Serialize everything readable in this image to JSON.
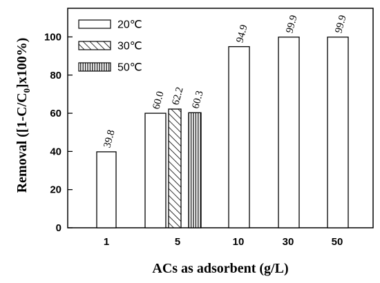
{
  "chart_data": {
    "type": "bar",
    "xlabel": "ACs as adsorbent (g/L)",
    "ylabel_parts": [
      "Removal ([1-C/C",
      "0",
      "]x100%)"
    ],
    "ylim": [
      0,
      115
    ],
    "yticks": [
      0,
      20,
      40,
      60,
      80,
      100
    ],
    "grid": false,
    "legend_position": "top-left",
    "categories": [
      "1",
      "5",
      "10",
      "30",
      "50"
    ],
    "series": [
      {
        "name": "20℃",
        "pattern": "empty",
        "values": [
          39.8,
          60.0,
          94.9,
          99.9,
          99.9
        ]
      },
      {
        "name": "30℃",
        "pattern": "diagonal",
        "values": [
          null,
          62.2,
          null,
          null,
          null
        ]
      },
      {
        "name": "50℃",
        "pattern": "vertical",
        "values": [
          null,
          60.3,
          null,
          null,
          null
        ]
      }
    ],
    "data_labels": [
      {
        "series": 0,
        "category": 0,
        "text": "39.8"
      },
      {
        "series": 0,
        "category": 1,
        "text": "60.0"
      },
      {
        "series": 1,
        "category": 1,
        "text": "62.2"
      },
      {
        "series": 2,
        "category": 1,
        "text": "60.3"
      },
      {
        "series": 0,
        "category": 2,
        "text": "94.9"
      },
      {
        "series": 0,
        "category": 3,
        "text": "99.9"
      },
      {
        "series": 0,
        "category": 4,
        "text": "99.9"
      }
    ]
  }
}
